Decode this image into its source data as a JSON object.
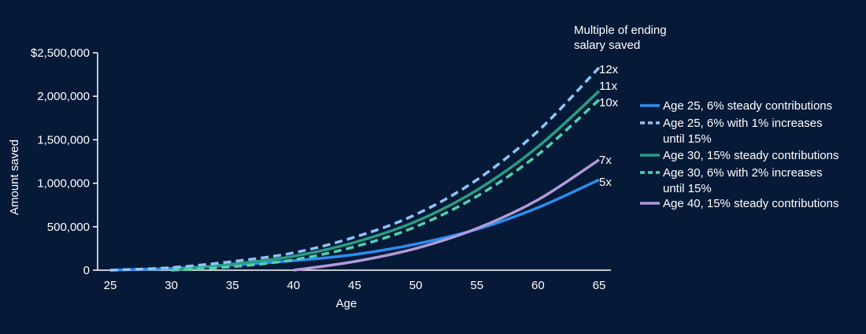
{
  "chart_data": {
    "type": "line",
    "title": "",
    "xlabel": "Age",
    "ylabel": "Amount saved",
    "xlim": [
      25,
      65
    ],
    "ylim": [
      0,
      2500000
    ],
    "x_ticks": [
      "25",
      "30",
      "35",
      "40",
      "45",
      "50",
      "55",
      "60",
      "65"
    ],
    "y_ticks": [
      "0",
      "500,000",
      "1,000,000",
      "1,500,000",
      "2,000,000",
      "$2,500,000"
    ],
    "y_tick_values": [
      0,
      500000,
      1000000,
      1500000,
      2000000,
      2500000
    ],
    "grid": false,
    "legend_placement": "right",
    "annotation": [
      "Multiple of ending",
      "salary saved"
    ],
    "series": [
      {
        "name": "Age 25, 6% steady contributions",
        "color": "#2a8ff0",
        "dash": "solid",
        "end_label": "5x",
        "x": [
          25,
          30,
          35,
          40,
          45,
          50,
          55,
          60,
          65
        ],
        "y": [
          0,
          20000,
          60000,
          110000,
          180000,
          300000,
          470000,
          720000,
          1040000
        ]
      },
      {
        "name": "Age 25, 6% with 1% increases until 15%",
        "color": "#8ec3f7",
        "dash": "dashed",
        "end_label": "12x",
        "x": [
          25,
          30,
          35,
          40,
          45,
          50,
          55,
          60,
          65
        ],
        "y": [
          0,
          30000,
          100000,
          200000,
          380000,
          640000,
          1040000,
          1600000,
          2330000
        ]
      },
      {
        "name": "Age 30, 15% steady contributions",
        "color": "#2a9d80",
        "dash": "solid",
        "end_label": "11x",
        "x": [
          30,
          35,
          40,
          45,
          50,
          55,
          60,
          65
        ],
        "y": [
          0,
          70000,
          160000,
          320000,
          560000,
          920000,
          1420000,
          2060000
        ]
      },
      {
        "name": "Age 30, 6% with 2% increases until 15%",
        "color": "#4fd1ad",
        "dash": "dashed",
        "end_label": "10x",
        "x": [
          30,
          35,
          40,
          45,
          50,
          55,
          60,
          65
        ],
        "y": [
          0,
          40000,
          120000,
          270000,
          500000,
          850000,
          1330000,
          1960000
        ]
      },
      {
        "name": "Age 40, 15% steady contributions",
        "color": "#b19ad8",
        "dash": "solid",
        "end_label": "7x",
        "x": [
          40,
          45,
          50,
          55,
          60,
          65
        ],
        "y": [
          0,
          100000,
          250000,
          480000,
          810000,
          1270000
        ]
      }
    ],
    "legend_lines": [
      [
        "Age 25, 6% steady contributions"
      ],
      [
        "Age 25, 6% with 1% increases",
        "until 15%"
      ],
      [
        "Age 30, 15% steady contributions"
      ],
      [
        "Age 30, 6% with 2% increases",
        "until 15%"
      ],
      [
        "Age 40, 15% steady contributions"
      ]
    ]
  }
}
